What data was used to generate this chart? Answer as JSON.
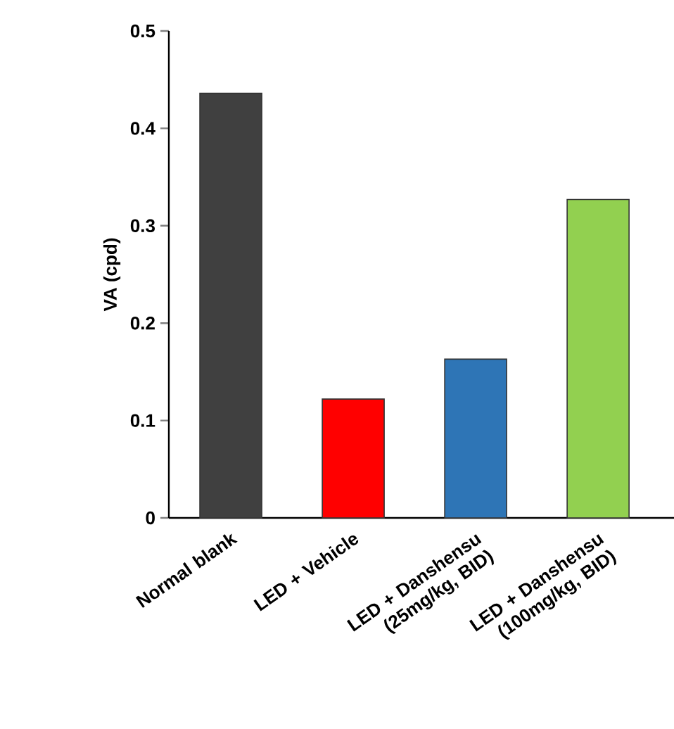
{
  "chart_data": {
    "type": "bar",
    "ylabel": "VA (cpd)",
    "categories": [
      "Normal blank",
      "LED + Vehicle",
      "LED + Danshensu (25mg/kg, BID)",
      "LED + Danshensu (100mg/kg, BID)"
    ],
    "values": [
      0.436,
      0.122,
      0.163,
      0.327
    ],
    "colors": [
      "#404040",
      "#ff0000",
      "#2e75b6",
      "#92d050"
    ],
    "ylim": [
      0,
      0.5
    ],
    "yticks": [
      0,
      0.1,
      0.2,
      0.3,
      0.4,
      0.5
    ],
    "grid": false
  }
}
